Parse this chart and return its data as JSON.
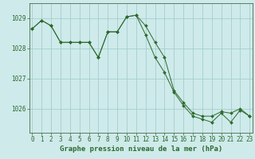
{
  "line1_x": [
    0,
    1,
    2,
    3,
    4,
    5,
    6,
    7,
    8,
    9,
    10,
    11,
    12,
    13,
    14,
    15,
    16,
    17,
    18,
    19,
    20,
    21,
    22,
    23
  ],
  "line1_y": [
    1028.65,
    1028.93,
    1028.75,
    1028.2,
    1028.2,
    1028.2,
    1028.2,
    1027.7,
    1028.55,
    1028.55,
    1029.05,
    1029.1,
    1028.75,
    1028.2,
    1027.7,
    1026.6,
    1026.2,
    1025.85,
    1025.75,
    1025.75,
    1025.9,
    1025.85,
    1026.0,
    1025.75
  ],
  "line2_x": [
    0,
    1,
    2,
    3,
    4,
    5,
    6,
    7,
    8,
    9,
    10,
    11,
    12,
    13,
    14,
    15,
    16,
    17,
    18,
    19,
    20,
    21,
    22,
    23
  ],
  "line2_y": [
    1028.65,
    1028.93,
    1028.75,
    1028.2,
    1028.2,
    1028.2,
    1028.2,
    1027.7,
    1028.55,
    1028.55,
    1029.05,
    1029.1,
    1028.45,
    1027.7,
    1027.2,
    1026.55,
    1026.1,
    1025.75,
    1025.65,
    1025.55,
    1025.85,
    1025.55,
    1025.95,
    1025.75
  ],
  "line_color": "#2d6a2d",
  "marker": "D",
  "marker_size": 2.0,
  "bg_color": "#ceeaea",
  "grid_color": "#9ec8c8",
  "axis_color": "#4a6a4a",
  "xlabel": "Graphe pression niveau de la mer (hPa)",
  "xticks": [
    0,
    1,
    2,
    3,
    4,
    5,
    6,
    7,
    8,
    9,
    10,
    11,
    12,
    13,
    14,
    15,
    16,
    17,
    18,
    19,
    20,
    21,
    22,
    23
  ],
  "yticks": [
    1026,
    1027,
    1028,
    1029
  ],
  "ylim": [
    1025.2,
    1029.5
  ],
  "xlim": [
    -0.3,
    23.3
  ],
  "tick_fontsize": 5.5,
  "xlabel_fontsize": 6.5
}
